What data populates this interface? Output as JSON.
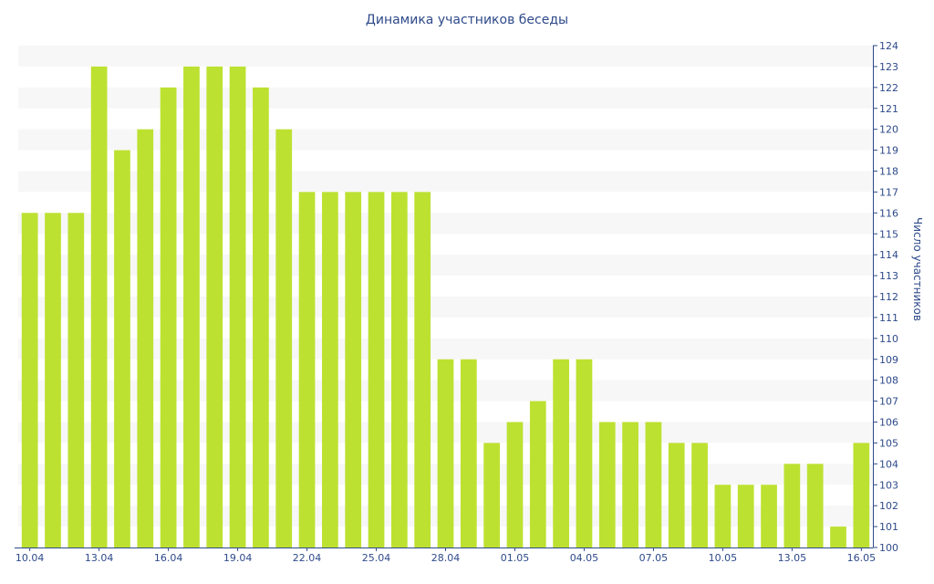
{
  "chart_data": {
    "type": "bar",
    "title": "Динамика участников беседы",
    "xlabel": "",
    "ylabel": "Число участников",
    "ylim": [
      100,
      124
    ],
    "y_axis_side": "right",
    "grid": "alternating horizontal bands",
    "bar_color": "#bde131",
    "band_color": "#f7f7f7",
    "axis_color": "#2e4a8a",
    "categories": [
      "10.04",
      "11.04",
      "12.04",
      "13.04",
      "14.04",
      "15.04",
      "16.04",
      "17.04",
      "18.04",
      "19.04",
      "20.04",
      "21.04",
      "22.04",
      "23.04",
      "24.04",
      "25.04",
      "26.04",
      "27.04",
      "28.04",
      "29.04",
      "30.04",
      "01.05",
      "02.05",
      "03.05",
      "04.05",
      "05.05",
      "06.05",
      "07.05",
      "08.05",
      "09.05",
      "10.05",
      "11.05",
      "12.05",
      "13.05",
      "14.05",
      "15.05",
      "16.05"
    ],
    "x_tick_labels": [
      "10.04",
      "13.04",
      "16.04",
      "19.04",
      "22.04",
      "25.04",
      "28.04",
      "01.05",
      "04.05",
      "07.05",
      "10.05",
      "13.05",
      "16.05"
    ],
    "values": [
      116,
      116,
      116,
      123,
      119,
      120,
      122,
      123,
      123,
      123,
      122,
      120,
      117,
      117,
      117,
      117,
      117,
      117,
      109,
      109,
      105,
      106,
      107,
      109,
      109,
      106,
      106,
      106,
      105,
      105,
      103,
      103,
      103,
      104,
      104,
      101,
      105
    ],
    "y_ticks": [
      100,
      101,
      102,
      103,
      104,
      105,
      106,
      107,
      108,
      109,
      110,
      111,
      112,
      113,
      114,
      115,
      116,
      117,
      118,
      119,
      120,
      121,
      122,
      123,
      124
    ]
  }
}
